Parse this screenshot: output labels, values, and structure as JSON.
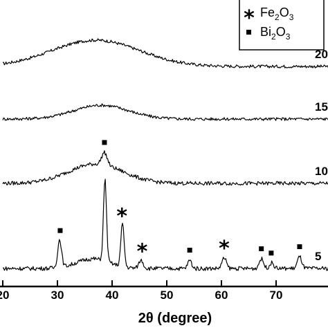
{
  "chart_data": {
    "type": "line",
    "xlabel": "2θ (degree)",
    "ylabel": "",
    "xlim": [
      20,
      80
    ],
    "x_ticks": [
      20,
      30,
      40,
      50,
      60,
      70
    ],
    "grid": false,
    "legend": {
      "placement": "top-right",
      "entries": [
        {
          "symbol": "star",
          "base": "Fe",
          "sub1": "2",
          "mid": "O",
          "sub2": "3"
        },
        {
          "symbol": "square",
          "base": "Bi",
          "sub1": "2",
          "mid": "O",
          "sub2": "3"
        }
      ]
    },
    "series": [
      {
        "label": "20",
        "peaks": [
          [
            37,
            38,
            8
          ]
        ],
        "offset": 3,
        "noise": 2.2
      },
      {
        "label": "15",
        "peaks": [
          [
            38,
            20,
            5
          ]
        ],
        "offset": 2,
        "noise": 2.2
      },
      {
        "label": "10",
        "peaks": [
          [
            37,
            28,
            5
          ],
          [
            38.6,
            18,
            0.5
          ]
        ],
        "offset": 1,
        "noise": 2.8
      },
      {
        "label": "5",
        "peaks": [
          [
            30.4,
            40,
            0.35
          ],
          [
            36.5,
            14,
            3
          ],
          [
            38.7,
            118,
            0.28
          ],
          [
            41.9,
            62,
            0.3
          ],
          [
            45.3,
            12,
            0.4
          ],
          [
            54.2,
            12,
            0.35
          ],
          [
            60.5,
            15,
            0.4
          ],
          [
            67.3,
            14,
            0.4
          ],
          [
            69.2,
            8,
            0.4
          ],
          [
            74.3,
            17,
            0.4
          ]
        ],
        "offset": 0,
        "noise": 3.0
      }
    ],
    "markers": [
      {
        "symbol": "square",
        "x": 30.5,
        "series": "5"
      },
      {
        "symbol": "square",
        "x": 38.6,
        "series": "10"
      },
      {
        "symbol": "star",
        "x": 41.8,
        "series": "5"
      },
      {
        "symbol": "star",
        "x": 45.5,
        "series": "5"
      },
      {
        "symbol": "square",
        "x": 54.2,
        "series": "5"
      },
      {
        "symbol": "star",
        "x": 60.5,
        "series": "5"
      },
      {
        "symbol": "square",
        "x": 67.3,
        "series": "5"
      },
      {
        "symbol": "square",
        "x": 69.1,
        "series": "5"
      },
      {
        "symbol": "square",
        "x": 74.3,
        "series": "5"
      }
    ]
  }
}
